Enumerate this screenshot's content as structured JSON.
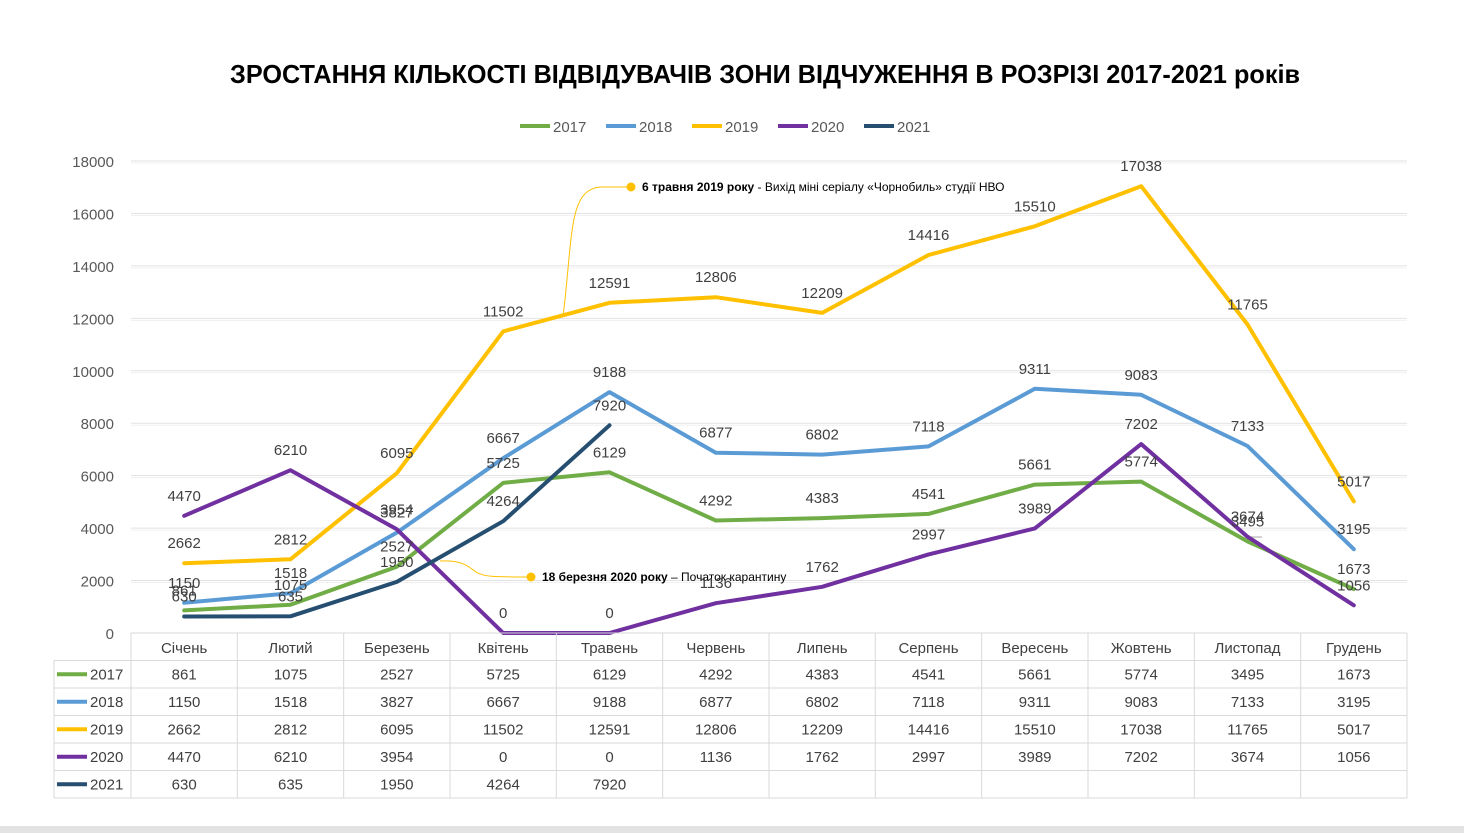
{
  "chart_data": {
    "type": "line",
    "title": "ЗРОСТАННЯ КІЛЬКОСТІ ВІДВІДУВАЧІВ ЗОНИ ВІДЧУЖЕННЯ В РОЗРІЗІ 2017-2021 років",
    "xlabel": "",
    "ylabel": "",
    "ylim": [
      0,
      18000
    ],
    "yticks": [
      "0",
      "2000",
      "4000",
      "6000",
      "8000",
      "10000",
      "12000",
      "14000",
      "16000",
      "18000"
    ],
    "grid": true,
    "legend": "top-center",
    "categories": [
      "Січень",
      "Лютий",
      "Березень",
      "Квітень",
      "Травень",
      "Червень",
      "Липень",
      "Серпень",
      "Вересень",
      "Жовтень",
      "Листопад",
      "Грудень"
    ],
    "series": [
      {
        "name": "2017",
        "color": "#70ad47",
        "values": [
          861,
          1075,
          2527,
          5725,
          6129,
          4292,
          4383,
          4541,
          5661,
          5774,
          3495,
          1673
        ]
      },
      {
        "name": "2018",
        "color": "#5b9bd5",
        "values": [
          1150,
          1518,
          3827,
          6667,
          9188,
          6877,
          6802,
          7118,
          9311,
          9083,
          7133,
          3195
        ]
      },
      {
        "name": "2019",
        "color": "#ffc000",
        "values": [
          2662,
          2812,
          6095,
          11502,
          12591,
          12806,
          12209,
          14416,
          15510,
          17038,
          11765,
          5017
        ]
      },
      {
        "name": "2020",
        "color": "#7030a0",
        "values": [
          4470,
          6210,
          3954,
          0,
          0,
          1136,
          1762,
          2997,
          3989,
          7202,
          3674,
          1056
        ]
      },
      {
        "name": "2021",
        "color": "#264e70",
        "values": [
          630,
          635,
          1950,
          4264,
          7920,
          null,
          null,
          null,
          null,
          null,
          null,
          null
        ]
      }
    ],
    "annotations": [
      {
        "bold": "6 травня 2019 року",
        "text": " - Вихід міні серіалу «Чорнобиль» студії НВО",
        "color": "#ffc000"
      },
      {
        "bold": "18 березня 2020 року",
        "text": " – Початок карантину",
        "color": "#ffc000"
      }
    ]
  }
}
